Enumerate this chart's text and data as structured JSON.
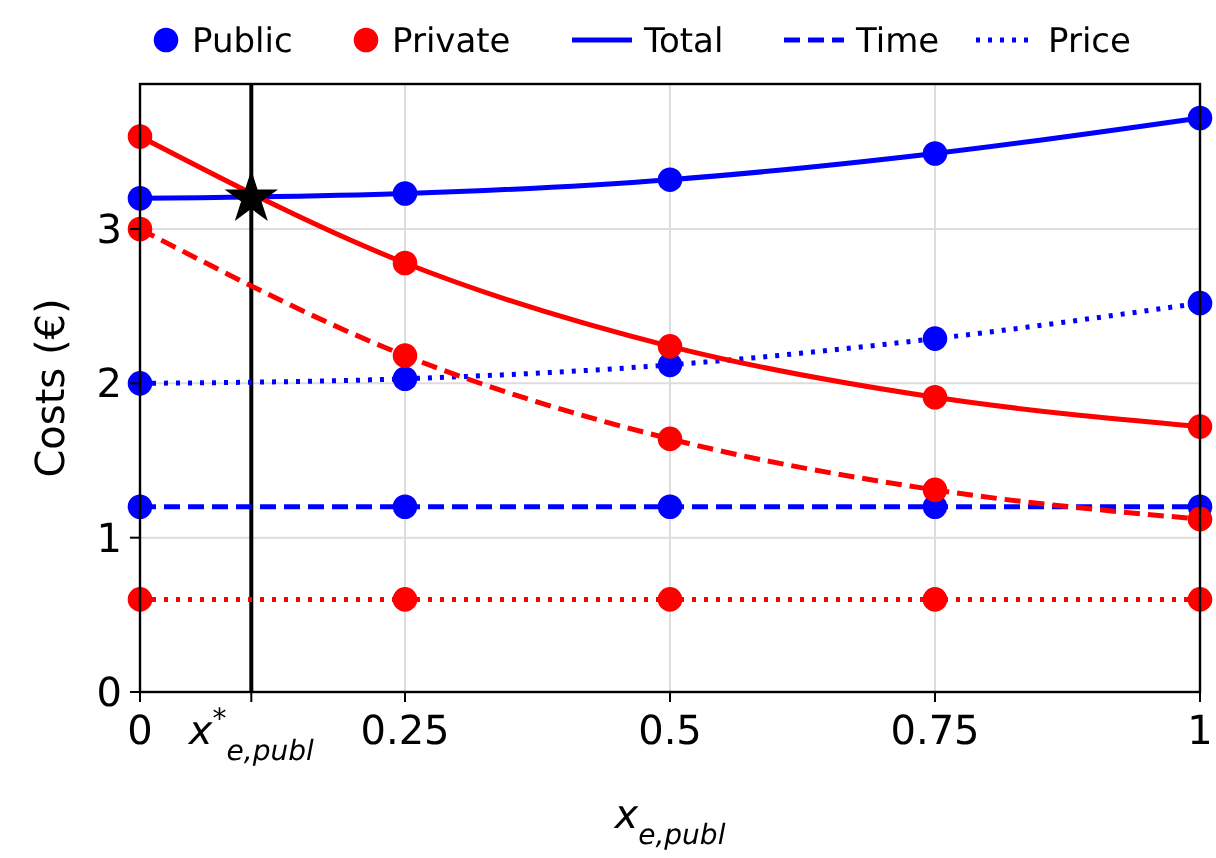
{
  "chart_data": {
    "type": "line",
    "xlabel": "x$_{e,publ}$",
    "ylabel": "Costs (€)",
    "xlim": [
      0,
      1
    ],
    "ylim": [
      0,
      3.94
    ],
    "xticks": [
      0,
      {
        "value": 0.105,
        "label": "x$^{*}$$_{e,publ}$"
      },
      0.25,
      0.5,
      0.75,
      1
    ],
    "yticks": [
      0,
      1,
      2,
      3
    ],
    "grid": true,
    "legend": "top",
    "series": [
      {
        "name": "Total",
        "color": "#0000ff",
        "line_style": "solid",
        "marker": "none",
        "x": [
          0,
          0.25,
          0.5,
          0.75,
          1
        ],
        "values": [
          3.2,
          3.23,
          3.32,
          3.49,
          3.72
        ]
      },
      {
        "name": "Time",
        "color": "#0000ff",
        "line_style": "dashed",
        "marker": "none",
        "x": [
          0,
          0.25,
          0.5,
          0.75,
          1
        ],
        "values": [
          1.2,
          1.2,
          1.2,
          1.2,
          1.2
        ]
      },
      {
        "name": "Price",
        "color": "#0000ff",
        "line_style": "dotted",
        "marker": "none",
        "x": [
          0,
          0.25,
          0.5,
          0.75,
          1
        ],
        "values": [
          2.0,
          2.03,
          2.12,
          2.29,
          2.52
        ]
      },
      {
        "color": "#ff0000",
        "line_style": "solid",
        "marker": "none",
        "x": [
          0,
          0.25,
          0.5,
          0.75,
          1
        ],
        "values": [
          3.6,
          2.78,
          2.24,
          1.91,
          1.72
        ]
      },
      {
        "color": "#ff0000",
        "line_style": "dashed",
        "marker": "none",
        "x": [
          0,
          0.25,
          0.5,
          0.75,
          1
        ],
        "values": [
          3.0,
          2.18,
          1.64,
          1.31,
          1.12
        ]
      },
      {
        "color": "#ff0000",
        "line_style": "dotted",
        "marker": "none",
        "x": [
          0,
          0.25,
          0.5,
          0.75,
          1
        ],
        "values": [
          0.6,
          0.6,
          0.6,
          0.6,
          0.6
        ]
      },
      {
        "name": "Public",
        "type": "scatter",
        "color": "#0000ff",
        "marker": "circle",
        "x": [
          0,
          0.25,
          0.5,
          0.75,
          1,
          0,
          0.25,
          0.5,
          0.75,
          1,
          0,
          0.25,
          0.5,
          0.75,
          1
        ],
        "values": [
          3.2,
          3.23,
          3.32,
          3.49,
          3.72,
          1.2,
          1.2,
          1.2,
          1.2,
          1.2,
          2.0,
          2.03,
          2.12,
          2.29,
          2.52
        ]
      },
      {
        "name": "Private",
        "type": "scatter",
        "color": "#ff0000",
        "marker": "circle",
        "x": [
          0,
          0.25,
          0.5,
          0.75,
          1,
          0,
          0.25,
          0.5,
          0.75,
          1,
          0,
          0.25,
          0.5,
          0.75,
          1
        ],
        "values": [
          3.6,
          2.78,
          2.24,
          1.91,
          1.72,
          3.0,
          2.18,
          1.64,
          1.31,
          1.12,
          0.6,
          0.6,
          0.6,
          0.6,
          0.6
        ]
      },
      {
        "type": "scatter",
        "color": "#000000",
        "marker": "star",
        "x": [
          0.105
        ],
        "values": [
          3.2
        ]
      }
    ],
    "ref_lines": [
      {
        "axis": "x",
        "value": 0.105,
        "color": "#000000",
        "line_style": "solid"
      }
    ]
  }
}
